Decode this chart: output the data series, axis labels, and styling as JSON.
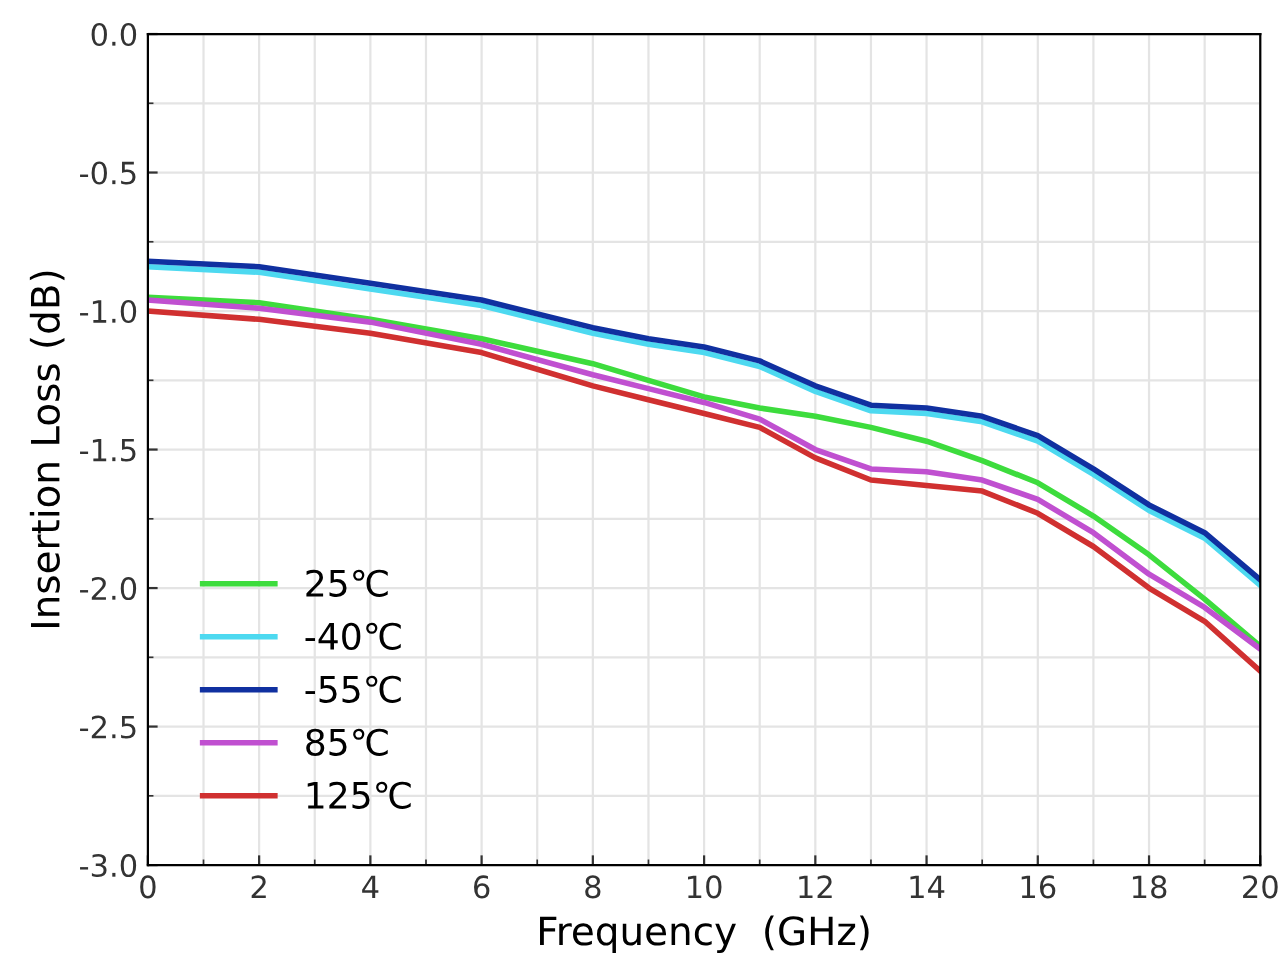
{
  "chart_data": {
    "type": "line",
    "xlabel": "Frequency  (GHz)",
    "ylabel": "Insertion Loss (dB)",
    "x": [
      0,
      2,
      4,
      6,
      8,
      9,
      10,
      11,
      12,
      13,
      14,
      15,
      16,
      17,
      18,
      19,
      20
    ],
    "xlim": [
      0,
      20
    ],
    "xticks": [
      0,
      2,
      4,
      6,
      8,
      10,
      12,
      14,
      16,
      18,
      20
    ],
    "ylim": [
      -3.0,
      0.0
    ],
    "yticks": [
      {
        "value": -3.0,
        "label": "-3.0"
      },
      {
        "value": -2.5,
        "label": "-2.5"
      },
      {
        "value": -2.0,
        "label": "-2.0"
      },
      {
        "value": -1.5,
        "label": "-1.5"
      },
      {
        "value": -1.0,
        "label": "-1.0"
      },
      {
        "value": -0.5,
        "label": "-0.5"
      },
      {
        "value": 0.0,
        "label": "0.0"
      }
    ],
    "grid": true,
    "legend": "bottom left",
    "marker": "none",
    "line_style": "solid",
    "series": [
      {
        "name": "25℃",
        "color": "#3ddc3d",
        "values": [
          -0.95,
          -0.97,
          -1.03,
          -1.1,
          -1.19,
          -1.25,
          -1.31,
          -1.35,
          -1.38,
          -1.42,
          -1.47,
          -1.54,
          -1.62,
          -1.74,
          -1.88,
          -2.04,
          -2.21
        ]
      },
      {
        "name": "-40℃",
        "color": "#4dd9f0",
        "values": [
          -0.84,
          -0.86,
          -0.92,
          -0.98,
          -1.08,
          -1.12,
          -1.15,
          -1.2,
          -1.29,
          -1.36,
          -1.37,
          -1.4,
          -1.47,
          -1.59,
          -1.72,
          -1.82,
          -1.99
        ]
      },
      {
        "name": "-55℃",
        "color": "#1030a0",
        "values": [
          -0.82,
          -0.84,
          -0.9,
          -0.96,
          -1.06,
          -1.1,
          -1.13,
          -1.18,
          -1.27,
          -1.34,
          -1.35,
          -1.38,
          -1.45,
          -1.57,
          -1.7,
          -1.8,
          -1.97
        ]
      },
      {
        "name": "85℃",
        "color": "#c050d0",
        "values": [
          -0.96,
          -0.99,
          -1.04,
          -1.12,
          -1.23,
          -1.28,
          -1.33,
          -1.39,
          -1.5,
          -1.57,
          -1.58,
          -1.61,
          -1.68,
          -1.8,
          -1.95,
          -2.07,
          -2.22
        ]
      },
      {
        "name": "125℃",
        "color": "#d03030",
        "values": [
          -1.0,
          -1.03,
          -1.08,
          -1.15,
          -1.27,
          -1.32,
          -1.37,
          -1.42,
          -1.53,
          -1.61,
          -1.63,
          -1.65,
          -1.73,
          -1.85,
          -2.0,
          -2.12,
          -2.3
        ]
      }
    ]
  }
}
